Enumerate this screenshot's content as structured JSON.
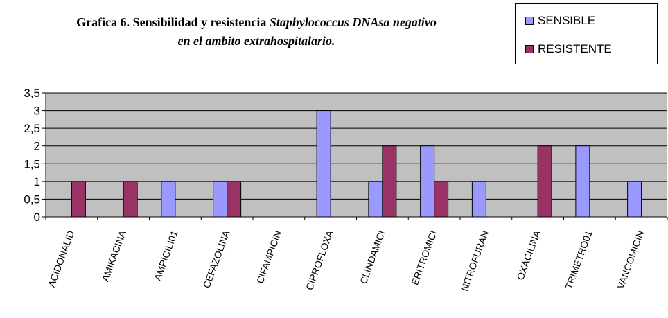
{
  "chart_data": {
    "type": "bar",
    "title_line1_prefix": "Grafica 6. Sensibilidad y resistencia ",
    "title_line1_italic": "Staphylococcus DNAsa negativo",
    "title_line2": "en el ambito extrahospitalario.",
    "xlabel": "",
    "ylabel": "",
    "ylim": [
      0,
      3.5
    ],
    "yticks": [
      "0",
      "0,5",
      "1",
      "1,5",
      "2",
      "2,5",
      "3",
      "3,5"
    ],
    "categories": [
      "ACIDONALID",
      "AMIKACINA",
      "AMPICILI01",
      "CEFAZOLINA",
      "CIFAMPICIN",
      "CIPROFLOXA",
      "CLINDAMICI",
      "ERITROMICI",
      "NITROFURAN",
      "OXACILINA",
      "TRIMETRO01",
      "VANCOMICIN"
    ],
    "series": [
      {
        "name": "SENSIBLE",
        "color": "#9999ff",
        "values": [
          0,
          0,
          1,
          1,
          0,
          3,
          1,
          2,
          1,
          0,
          2,
          1
        ]
      },
      {
        "name": "RESISTENTE",
        "color": "#993366",
        "values": [
          1,
          1,
          0,
          1,
          0,
          0,
          2,
          1,
          0,
          2,
          0,
          0
        ]
      }
    ],
    "grid": true,
    "plot_background": "#c0c0c0",
    "legend_position": "top-right"
  }
}
